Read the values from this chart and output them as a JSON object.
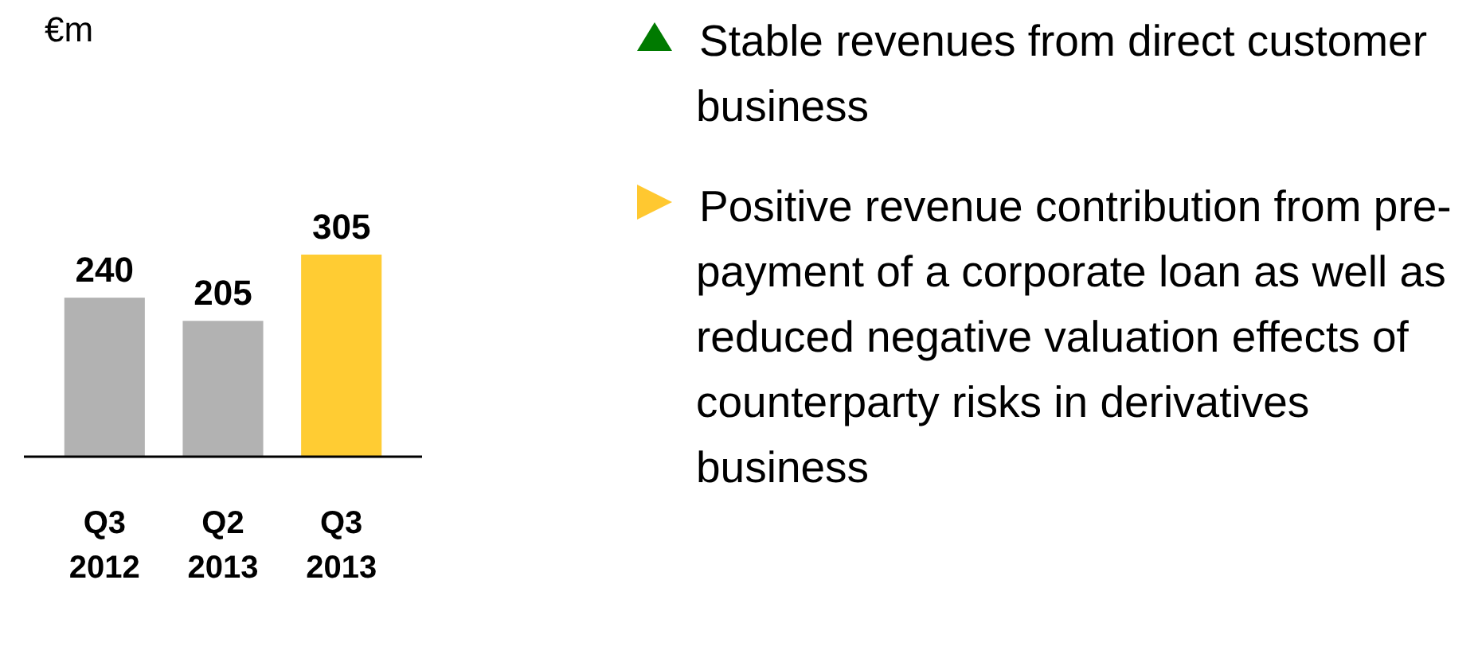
{
  "chart_data": {
    "type": "bar",
    "categories": [
      "Q3 2012",
      "Q2 2013",
      "Q3 2013"
    ],
    "values": [
      240,
      205,
      305
    ],
    "colors": [
      "#b2b2b2",
      "#b2b2b2",
      "#ffcc33"
    ],
    "data_labels": true,
    "annotations": [
      "€m",
      "Stable revenues from direct customer business",
      "Positive revenue contribution from pre-payment of a corporate loan as well as reduced negative valuation effects of counterparty risks in derivatives business"
    ]
  }
}
